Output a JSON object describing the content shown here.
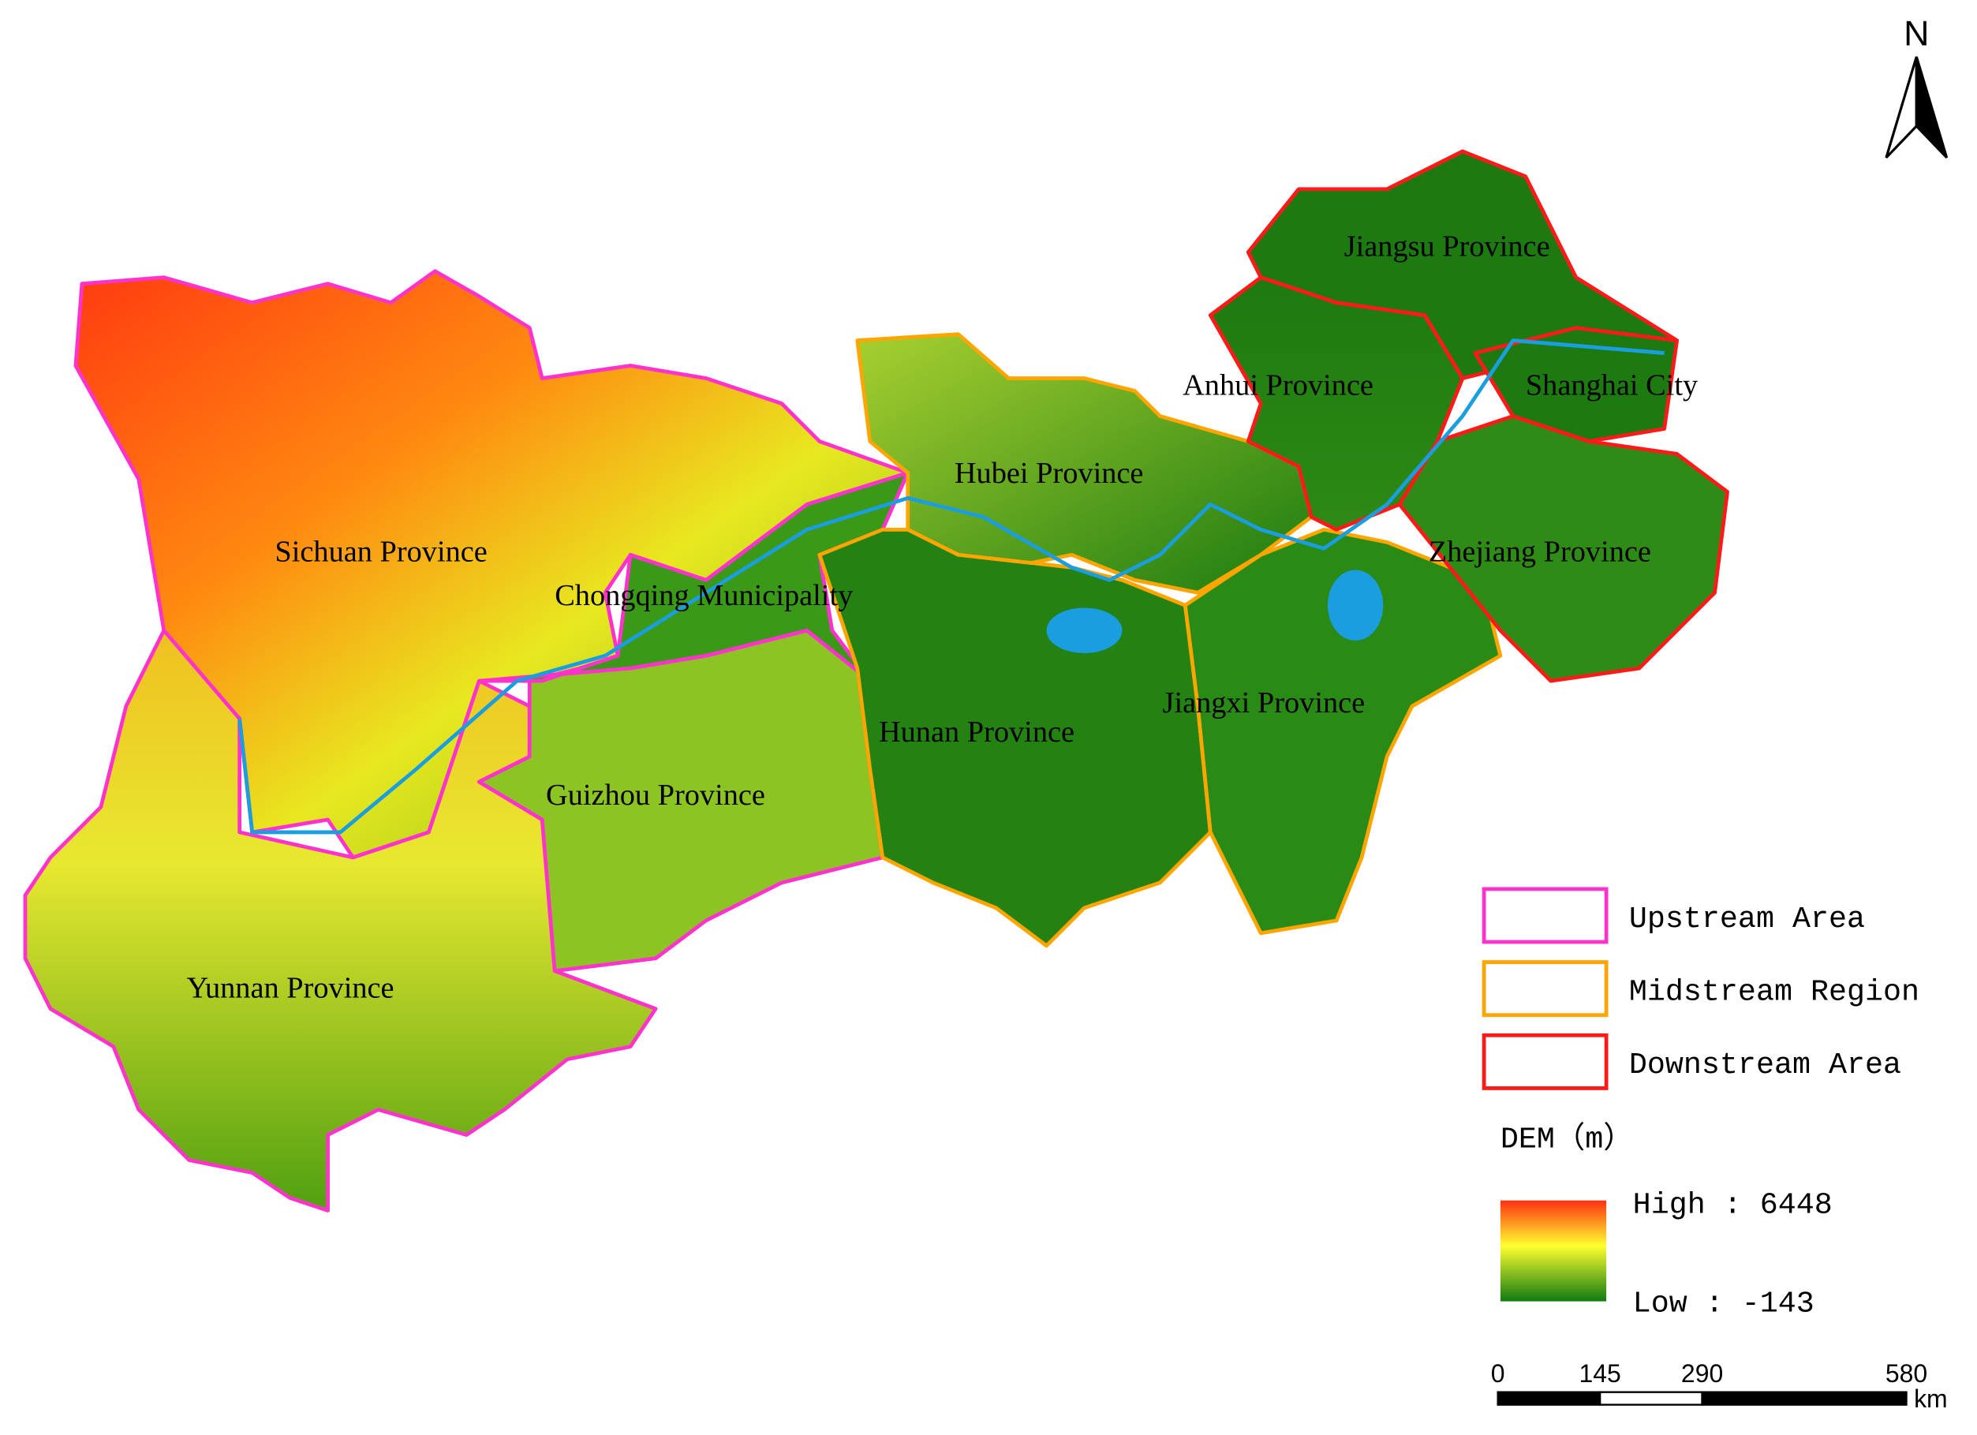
{
  "north_label": "N",
  "regions": [
    {
      "label": "Sichuan Province"
    },
    {
      "label": "Chongqing Municipality"
    },
    {
      "label": "Guizhou Province"
    },
    {
      "label": "Yunnan Province"
    },
    {
      "label": "Hubei Province"
    },
    {
      "label": "Hunan Province"
    },
    {
      "label": "Jiangxi Province"
    },
    {
      "label": "Anhui Province"
    },
    {
      "label": "Jiangsu Province"
    },
    {
      "label": "Shanghai City"
    },
    {
      "label": "Zhejiang Province"
    }
  ],
  "legend": {
    "items": [
      {
        "label": "Upstream Area",
        "color": "#ff33cc"
      },
      {
        "label": "Midstream Region",
        "color": "#ffa500"
      },
      {
        "label": "Downstream Area",
        "color": "#ff1a1a"
      }
    ],
    "dem_title": "DEM（m）",
    "high": "High : 6448",
    "low": "Low : -143"
  },
  "scale_bar": {
    "ticks": [
      0,
      145,
      290,
      580
    ],
    "unit": "km"
  }
}
